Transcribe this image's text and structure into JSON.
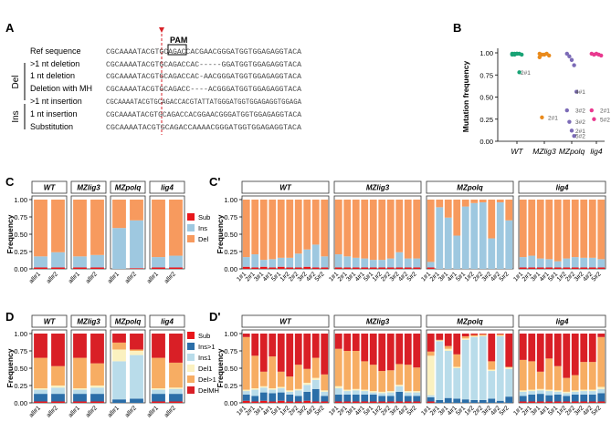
{
  "panel_labels": {
    "A": "A",
    "B": "B",
    "C": "C",
    "Cp": "C'",
    "D": "D",
    "Dp": "D'"
  },
  "colors": {
    "sub": "#e8161b",
    "ins": "#9ec8e0",
    "del": "#f79a5e",
    "ins_gt1": "#2b6ea8",
    "ins1": "#b9dcea",
    "del1": "#fbf1c0",
    "del_gt1": "#f7ad63",
    "delmh": "#d91f26",
    "wt": "#19a375",
    "mzlig3": "#e98a1c",
    "mzpolq": "#7c6bb7",
    "lig4": "#e9398f"
  },
  "panelA": {
    "pam": "PAM",
    "rows": [
      {
        "label": "Ref sequence",
        "seq": "CGCAAAATACGTGCAGACCACGAACGGGATGGTGGAGAGGTACA"
      },
      {
        "label": ">1 nt deletion",
        "seq": "CGCAAAATACGTGCAGACCAC-----GGATGGTGGAGAGGTACA"
      },
      {
        "label": "1 nt deletion",
        "seq": "CGCAAAATACGTGCAGACCAC-AACGGGATGGTGGAGAGGTACA"
      },
      {
        "label": "Deletion with MH",
        "seq": "CGCAAAATACGTGCAGACC----ACGGGATGGTGGAGAGGTACA"
      },
      {
        "label": ">1 nt insertion",
        "seq": "CGCAAAATACGTGCAGACCACGTATTATGGGATGGTGGAGAGGTGGAGA"
      },
      {
        "label": "1 nt insertion",
        "seq": "CGCAAAATACGTGCAGACCACGGAACGGGATGGTGGAGAGGTACA"
      },
      {
        "label": "Substitution",
        "seq": "CGCAAAATACGTGCAGACCAAAACGGGATGGTGGAGAGGTACA"
      }
    ],
    "group_del": "Del",
    "group_ins": "Ins"
  },
  "panelB": {
    "ylabel": "Mutation frequency",
    "yticks": [
      "0.00",
      "0.25",
      "0.50",
      "0.75",
      "1.00"
    ],
    "groups": [
      {
        "name": "WT",
        "points": [
          0.99,
          0.99,
          0.99,
          0.99,
          0.98,
          0.98,
          0.98,
          0.99,
          0.78
        ],
        "labels": [
          {
            "text": "2#1",
            "y": 0.78
          }
        ]
      },
      {
        "name": "MZlig3",
        "points": [
          0.99,
          0.98,
          0.98,
          0.99,
          0.97,
          0.95,
          0.27
        ],
        "labels": [
          {
            "text": "2#1",
            "y": 0.27
          }
        ]
      },
      {
        "name": "MZpolq",
        "points": [
          0.99,
          0.96,
          0.92,
          0.86,
          0.56,
          0.35,
          0.22,
          0.12,
          0.06
        ],
        "labels": [
          {
            "text": "4#1",
            "y": 0.56
          },
          {
            "text": "3#2",
            "y": 0.35
          },
          {
            "text": "3#2",
            "y": 0.22
          },
          {
            "text": "2#1",
            "y": 0.12
          },
          {
            "text": "5#2",
            "y": 0.06
          }
        ]
      },
      {
        "name": "lig4",
        "points": [
          0.99,
          0.98,
          0.99,
          0.98,
          0.97,
          0.35,
          0.25
        ],
        "labels": [
          {
            "text": "2#1",
            "y": 0.35
          },
          {
            "text": "5#2",
            "y": 0.25
          }
        ]
      }
    ]
  },
  "panelC": {
    "ylabel": "Frequency",
    "yticks": [
      "0.00",
      "0.25",
      "0.50",
      "0.75",
      "1.00"
    ],
    "facets": [
      "WT",
      "MZlig3",
      "MZpolq",
      "lig4"
    ],
    "xlabels": [
      "all#1",
      "all#2"
    ],
    "legend": [
      "Sub",
      "Ins",
      "Del"
    ],
    "data": [
      [
        [
          0.02,
          0.16,
          0.82
        ],
        [
          0.02,
          0.22,
          0.76
        ]
      ],
      [
        [
          0.02,
          0.16,
          0.82
        ],
        [
          0.02,
          0.18,
          0.8
        ]
      ],
      [
        [
          0.0,
          0.59,
          0.41
        ],
        [
          0.01,
          0.69,
          0.3
        ]
      ],
      [
        [
          0.02,
          0.15,
          0.83
        ],
        [
          0.02,
          0.17,
          0.81
        ]
      ]
    ]
  },
  "panelCp": {
    "ylabel": "Frequency",
    "yticks": [
      "0.00",
      "0.25",
      "0.50",
      "0.75",
      "1.00"
    ],
    "facets": [
      "WT",
      "MZlig3",
      "MZpolq",
      "lig4"
    ],
    "xlabels": [
      "1#1",
      "2#1",
      "3#1",
      "4#1",
      "5#1",
      "1#2",
      "2#2",
      "3#2",
      "4#2",
      "5#2"
    ],
    "data": [
      [
        [
          0.03,
          0.14,
          0.83
        ],
        [
          0.02,
          0.19,
          0.79
        ],
        [
          0.03,
          0.1,
          0.87
        ],
        [
          0.02,
          0.12,
          0.86
        ],
        [
          0.03,
          0.13,
          0.84
        ],
        [
          0.02,
          0.14,
          0.84
        ],
        [
          0.02,
          0.2,
          0.78
        ],
        [
          0.03,
          0.25,
          0.72
        ],
        [
          0.02,
          0.33,
          0.65
        ],
        [
          0.02,
          0.16,
          0.82
        ]
      ],
      [
        [
          0.02,
          0.19,
          0.79
        ],
        [
          0.02,
          0.16,
          0.82
        ],
        [
          0.02,
          0.14,
          0.84
        ],
        [
          0.02,
          0.13,
          0.85
        ],
        [
          0.02,
          0.11,
          0.87
        ],
        [
          0.02,
          0.11,
          0.87
        ],
        [
          0.02,
          0.13,
          0.85
        ],
        [
          0.02,
          0.22,
          0.76
        ],
        [
          0.02,
          0.13,
          0.85
        ],
        [
          0.02,
          0.13,
          0.85
        ]
      ],
      [
        [
          0.02,
          0.08,
          0.9
        ],
        [
          0.0,
          0.89,
          0.11
        ],
        [
          0.0,
          0.74,
          0.26
        ],
        [
          0.0,
          0.48,
          0.52
        ],
        [
          0.0,
          0.9,
          0.1
        ],
        [
          0.0,
          0.95,
          0.05
        ],
        [
          0.0,
          0.96,
          0.04
        ],
        [
          0.0,
          0.44,
          0.56
        ],
        [
          0.0,
          0.96,
          0.04
        ],
        [
          0.0,
          0.7,
          0.3
        ]
      ],
      [
        [
          0.02,
          0.15,
          0.83
        ],
        [
          0.02,
          0.17,
          0.81
        ],
        [
          0.02,
          0.13,
          0.85
        ],
        [
          0.02,
          0.12,
          0.86
        ],
        [
          0.02,
          0.09,
          0.89
        ],
        [
          0.02,
          0.13,
          0.85
        ],
        [
          0.02,
          0.15,
          0.83
        ],
        [
          0.02,
          0.14,
          0.84
        ],
        [
          0.02,
          0.14,
          0.84
        ],
        [
          0.02,
          0.12,
          0.86
        ]
      ]
    ]
  },
  "panelD": {
    "ylabel": "Frequency",
    "yticks": [
      "0.00",
      "0.25",
      "0.50",
      "0.75",
      "1.00"
    ],
    "facets": [
      "WT",
      "MZlig3",
      "MZpolq",
      "lig4"
    ],
    "xlabels": [
      "all#1",
      "all#2"
    ],
    "legend": [
      "Sub",
      "Ins>1",
      "Ins1",
      "Del1",
      "Del>1",
      "DelMH"
    ],
    "data": [
      [
        [
          0.02,
          0.11,
          0.06,
          0.02,
          0.44,
          0.35
        ],
        [
          0.02,
          0.11,
          0.09,
          0.03,
          0.28,
          0.47
        ]
      ],
      [
        [
          0.02,
          0.11,
          0.06,
          0.02,
          0.44,
          0.35
        ],
        [
          0.02,
          0.11,
          0.09,
          0.03,
          0.32,
          0.43
        ]
      ],
      [
        [
          0.0,
          0.05,
          0.55,
          0.17,
          0.1,
          0.13
        ],
        [
          0.0,
          0.06,
          0.63,
          0.06,
          0.02,
          0.23
        ]
      ],
      [
        [
          0.02,
          0.11,
          0.06,
          0.02,
          0.44,
          0.35
        ],
        [
          0.02,
          0.11,
          0.07,
          0.02,
          0.36,
          0.42
        ]
      ]
    ]
  },
  "panelDp": {
    "ylabel": "Frequency",
    "yticks": [
      "0.00",
      "0.25",
      "0.50",
      "0.75",
      "1.00"
    ],
    "facets": [
      "WT",
      "MZlig3",
      "MZpolq",
      "lig4"
    ],
    "xlabels": [
      "1#1",
      "2#1",
      "3#1",
      "4#1",
      "5#1",
      "1#2",
      "2#2",
      "3#2",
      "4#2",
      "5#2"
    ],
    "data": [
      [
        [
          0.03,
          0.09,
          0.05,
          0.02,
          0.76,
          0.05
        ],
        [
          0.02,
          0.08,
          0.09,
          0.02,
          0.47,
          0.32
        ],
        [
          0.03,
          0.12,
          0.07,
          0.02,
          0.21,
          0.55
        ],
        [
          0.02,
          0.12,
          0.05,
          0.02,
          0.46,
          0.33
        ],
        [
          0.03,
          0.12,
          0.06,
          0.02,
          0.22,
          0.55
        ],
        [
          0.02,
          0.1,
          0.04,
          0.02,
          0.2,
          0.62
        ],
        [
          0.02,
          0.08,
          0.08,
          0.02,
          0.35,
          0.45
        ],
        [
          0.03,
          0.13,
          0.1,
          0.03,
          0.2,
          0.51
        ],
        [
          0.02,
          0.18,
          0.13,
          0.03,
          0.29,
          0.35
        ],
        [
          0.02,
          0.08,
          0.06,
          0.02,
          0.23,
          0.59
        ]
      ],
      [
        [
          0.02,
          0.1,
          0.09,
          0.03,
          0.54,
          0.22
        ],
        [
          0.02,
          0.1,
          0.05,
          0.02,
          0.56,
          0.25
        ],
        [
          0.02,
          0.1,
          0.06,
          0.02,
          0.55,
          0.25
        ],
        [
          0.02,
          0.1,
          0.05,
          0.02,
          0.41,
          0.4
        ],
        [
          0.02,
          0.1,
          0.03,
          0.02,
          0.38,
          0.45
        ],
        [
          0.02,
          0.08,
          0.04,
          0.02,
          0.3,
          0.54
        ],
        [
          0.02,
          0.08,
          0.05,
          0.02,
          0.3,
          0.53
        ],
        [
          0.02,
          0.14,
          0.08,
          0.02,
          0.3,
          0.44
        ],
        [
          0.02,
          0.08,
          0.05,
          0.02,
          0.38,
          0.45
        ],
        [
          0.02,
          0.08,
          0.05,
          0.02,
          0.34,
          0.49
        ]
      ],
      [
        [
          0.02,
          0.06,
          0.03,
          0.57,
          0.06,
          0.26
        ],
        [
          0.0,
          0.04,
          0.85,
          0.01,
          0.01,
          0.09
        ],
        [
          0.0,
          0.07,
          0.68,
          0.03,
          0.04,
          0.18
        ],
        [
          0.0,
          0.06,
          0.44,
          0.02,
          0.18,
          0.3
        ],
        [
          0.0,
          0.05,
          0.86,
          0.02,
          0.03,
          0.04
        ],
        [
          0.0,
          0.04,
          0.91,
          0.01,
          0.02,
          0.02
        ],
        [
          0.0,
          0.04,
          0.92,
          0.01,
          0.02,
          0.01
        ],
        [
          0.0,
          0.06,
          0.4,
          0.02,
          0.12,
          0.4
        ],
        [
          0.0,
          0.03,
          0.93,
          0.01,
          0.02,
          0.01
        ],
        [
          0.0,
          0.09,
          0.4,
          0.02,
          0.01,
          0.48
        ]
      ],
      [
        [
          0.02,
          0.08,
          0.06,
          0.02,
          0.44,
          0.38
        ],
        [
          0.02,
          0.1,
          0.05,
          0.02,
          0.41,
          0.4
        ],
        [
          0.02,
          0.11,
          0.05,
          0.02,
          0.25,
          0.55
        ],
        [
          0.02,
          0.09,
          0.06,
          0.02,
          0.45,
          0.36
        ],
        [
          0.02,
          0.1,
          0.04,
          0.02,
          0.35,
          0.47
        ],
        [
          0.02,
          0.08,
          0.04,
          0.02,
          0.2,
          0.64
        ],
        [
          0.02,
          0.1,
          0.04,
          0.02,
          0.22,
          0.6
        ],
        [
          0.02,
          0.1,
          0.05,
          0.02,
          0.4,
          0.41
        ],
        [
          0.02,
          0.1,
          0.05,
          0.02,
          0.4,
          0.41
        ],
        [
          0.02,
          0.12,
          0.06,
          0.03,
          0.72,
          0.05
        ]
      ]
    ]
  }
}
